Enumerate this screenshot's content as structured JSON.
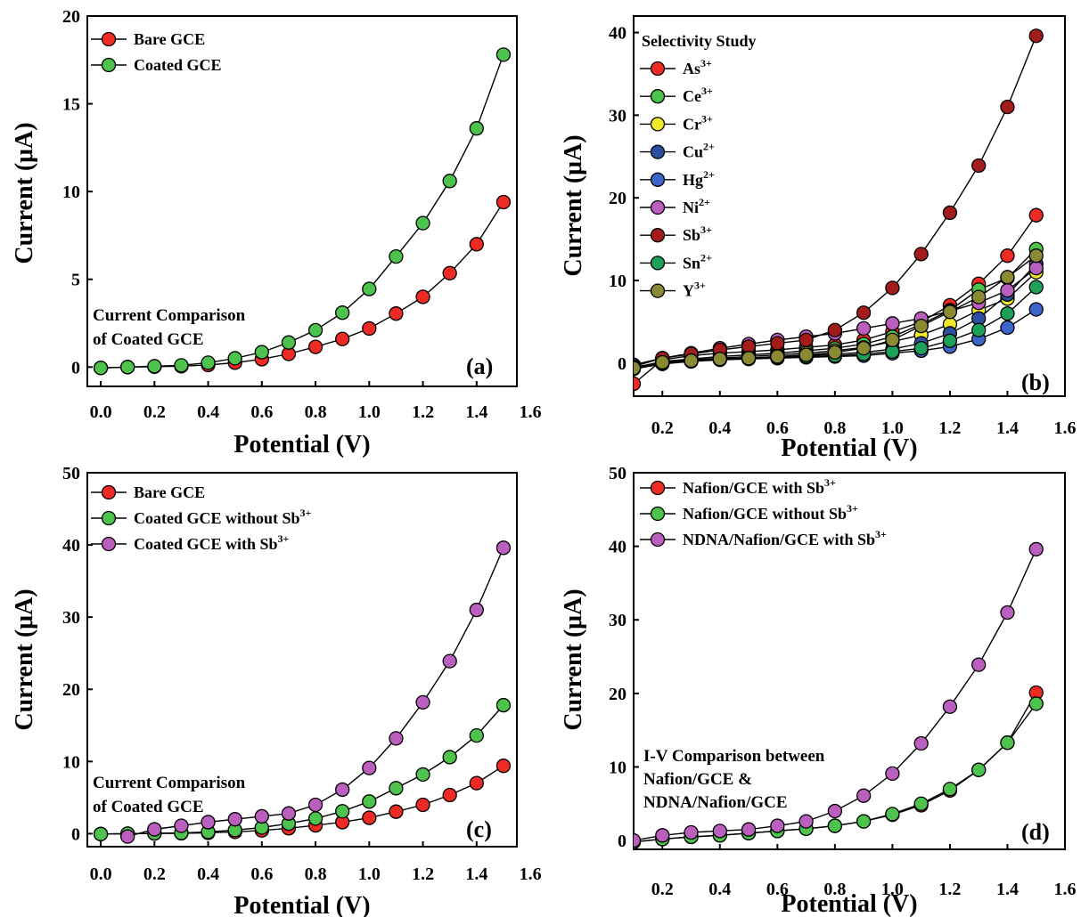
{
  "chart_data": [
    {
      "type": "line",
      "panel": "(a)",
      "xlabel": "Potential (V)",
      "ylabel": "Current (μA)",
      "xlim": [
        -0.05,
        1.55
      ],
      "ylim": [
        -1.1,
        20
      ],
      "xticks": [
        "0.0",
        "0.2",
        "0.4",
        "0.6",
        "0.8",
        "1.0",
        "1.2",
        "1.4",
        "1.6"
      ],
      "yticks": [
        "0",
        "5",
        "10",
        "15",
        "20"
      ],
      "legend_position": "top-left",
      "annotation": [
        "Current Comparison",
        "of Coated GCE"
      ],
      "x": [
        0.0,
        0.1,
        0.2,
        0.3,
        0.4,
        0.5,
        0.6,
        0.7,
        0.8,
        0.9,
        1.0,
        1.1,
        1.2,
        1.3,
        1.4,
        1.5
      ],
      "series": [
        {
          "name": "Bare GCE",
          "color": "#ee2a24",
          "values": [
            -0.05,
            0.0,
            0.02,
            0.05,
            0.12,
            0.25,
            0.45,
            0.75,
            1.15,
            1.6,
            2.2,
            3.05,
            4.0,
            5.35,
            7.0,
            9.4
          ]
        },
        {
          "name": "Coated GCE",
          "color": "#4dc24d",
          "values": [
            -0.05,
            0.0,
            0.05,
            0.1,
            0.25,
            0.5,
            0.85,
            1.4,
            2.1,
            3.1,
            4.45,
            6.3,
            8.2,
            10.6,
            13.6,
            17.8
          ]
        }
      ]
    },
    {
      "type": "line",
      "panel": "(b)",
      "title": "Selectivity Study",
      "xlabel": "Potential (V)",
      "ylabel": "Current (μA)",
      "xlim": [
        0.1,
        1.6
      ],
      "ylim": [
        -4,
        42
      ],
      "xticks": [
        "0.2",
        "0.4",
        "0.6",
        "0.8",
        "1.0",
        "1.2",
        "1.4",
        "1.6"
      ],
      "yticks": [
        "0",
        "10",
        "20",
        "30",
        "40"
      ],
      "legend_position": "top-left",
      "x": [
        0.1,
        0.2,
        0.3,
        0.4,
        0.5,
        0.6,
        0.7,
        0.8,
        0.9,
        1.0,
        1.1,
        1.2,
        1.3,
        1.4,
        1.5
      ],
      "series": [
        {
          "name": "As",
          "sup": "3+",
          "color": "#ee2a24",
          "values": [
            -2.5,
            0.4,
            0.9,
            1.2,
            1.4,
            1.6,
            1.9,
            2.2,
            2.8,
            3.8,
            5.0,
            7.0,
            9.6,
            13.0,
            17.9
          ]
        },
        {
          "name": "Ce",
          "sup": "3+",
          "color": "#4dc24d",
          "values": [
            -0.6,
            0.2,
            0.5,
            0.8,
            1.0,
            1.2,
            1.5,
            1.8,
            2.3,
            3.2,
            4.7,
            6.4,
            8.9,
            10.3,
            13.8
          ]
        },
        {
          "name": "Cr",
          "sup": "3+",
          "color": "#f2e82b",
          "values": [
            -0.5,
            0.1,
            0.4,
            0.6,
            0.8,
            1.0,
            1.2,
            1.5,
            1.9,
            2.6,
            3.4,
            4.7,
            6.4,
            7.8,
            11.0
          ]
        },
        {
          "name": "Cu",
          "sup": "2+",
          "color": "#2c4fa0",
          "values": [
            -0.6,
            0.0,
            0.3,
            0.5,
            0.6,
            0.8,
            0.9,
            1.1,
            1.3,
            1.7,
            2.4,
            3.6,
            5.4,
            8.3,
            12.0
          ]
        },
        {
          "name": "Hg",
          "sup": "2+",
          "color": "#3b66c8",
          "values": [
            -0.7,
            -0.1,
            0.2,
            0.4,
            0.5,
            0.6,
            0.7,
            0.8,
            0.9,
            1.2,
            1.5,
            2.0,
            2.9,
            4.3,
            6.5
          ]
        },
        {
          "name": "Ni",
          "sup": "2+",
          "color": "#bb5fbe",
          "values": [
            -0.2,
            0.6,
            1.2,
            1.8,
            2.3,
            2.8,
            3.2,
            3.6,
            4.2,
            4.8,
            5.4,
            6.3,
            7.3,
            8.8,
            11.5
          ]
        },
        {
          "name": "Sb",
          "sup": "3+",
          "color": "#a21c1c",
          "values": [
            -0.4,
            0.6,
            1.1,
            1.6,
            2.0,
            2.4,
            2.8,
            4.0,
            6.1,
            9.1,
            13.2,
            18.2,
            23.9,
            31.0,
            39.6
          ]
        },
        {
          "name": "Sn",
          "sup": "2+",
          "color": "#1e9f5a",
          "values": [
            -0.5,
            0.0,
            0.3,
            0.5,
            0.6,
            0.7,
            0.8,
            0.9,
            1.1,
            1.4,
            1.8,
            2.7,
            4.0,
            6.0,
            9.2
          ]
        },
        {
          "name": "Y",
          "sup": "3+",
          "color": "#8b8a34",
          "values": [
            -0.6,
            0.1,
            0.3,
            0.5,
            0.6,
            0.8,
            1.0,
            1.3,
            1.8,
            2.8,
            4.5,
            6.2,
            8.0,
            10.4,
            13.0
          ]
        }
      ]
    },
    {
      "type": "line",
      "panel": "(c)",
      "xlabel": "Potential (V)",
      "ylabel": "Current (μA)",
      "xlim": [
        -0.05,
        1.55
      ],
      "ylim": [
        -1.8,
        50
      ],
      "xticks": [
        "0.0",
        "0.2",
        "0.4",
        "0.6",
        "0.8",
        "1.0",
        "1.2",
        "1.4",
        "1.6"
      ],
      "yticks": [
        "0",
        "10",
        "20",
        "30",
        "40",
        "50"
      ],
      "legend_position": "top-left",
      "annotation": [
        "Current Comparison",
        "of Coated GCE"
      ],
      "x": [
        0.0,
        0.1,
        0.2,
        0.3,
        0.4,
        0.5,
        0.6,
        0.7,
        0.8,
        0.9,
        1.0,
        1.1,
        1.2,
        1.3,
        1.4,
        1.5
      ],
      "series": [
        {
          "name": "Bare GCE",
          "color": "#ee2a24",
          "values": [
            -0.05,
            0.0,
            0.02,
            0.05,
            0.12,
            0.25,
            0.45,
            0.75,
            1.15,
            1.6,
            2.2,
            3.05,
            4.0,
            5.35,
            7.0,
            9.4
          ]
        },
        {
          "name": "Coated GCE without Sb",
          "sup": "3+",
          "color": "#4dc24d",
          "values": [
            -0.05,
            0.0,
            0.05,
            0.1,
            0.25,
            0.5,
            0.85,
            1.4,
            2.1,
            3.1,
            4.45,
            6.3,
            8.2,
            10.6,
            13.6,
            17.8
          ]
        },
        {
          "name": "Coated GCE with Sb",
          "sup": "3+",
          "color": "#bb5fbe",
          "values": [
            null,
            -0.4,
            0.6,
            1.1,
            1.6,
            2.0,
            2.4,
            2.8,
            4.0,
            6.1,
            9.1,
            13.2,
            18.2,
            23.9,
            31.0,
            39.6
          ]
        }
      ]
    },
    {
      "type": "line",
      "panel": "(d)",
      "xlabel": "Potential (V)",
      "ylabel": "Current (μA)",
      "xlim": [
        0.1,
        1.6
      ],
      "ylim": [
        -1.2,
        50
      ],
      "xticks": [
        "0.2",
        "0.4",
        "0.6",
        "0.8",
        "1.0",
        "1.2",
        "1.4",
        "1.6"
      ],
      "yticks": [
        "0",
        "10",
        "20",
        "30",
        "40",
        "50"
      ],
      "legend_position": "top-left",
      "annotation": [
        "I-V Comparison between",
        "Nafion/GCE &",
        "NDNA/Nafion/GCE"
      ],
      "x": [
        0.1,
        0.2,
        0.3,
        0.4,
        0.5,
        0.6,
        0.7,
        0.8,
        0.9,
        1.0,
        1.1,
        1.2,
        1.3,
        1.4,
        1.5
      ],
      "series": [
        {
          "name": "Nafion/GCE with Sb",
          "sup": "3+",
          "color": "#ee2a24",
          "values": [
            -0.2,
            0.2,
            0.5,
            0.7,
            1.0,
            1.3,
            1.6,
            2.0,
            2.6,
            3.5,
            4.8,
            6.8,
            9.6,
            13.3,
            20.1
          ]
        },
        {
          "name": "Nafion/GCE without Sb",
          "sup": "3+",
          "color": "#4dc24d",
          "values": [
            -0.2,
            0.2,
            0.5,
            0.7,
            1.0,
            1.3,
            1.6,
            2.0,
            2.6,
            3.6,
            5.0,
            7.0,
            9.6,
            13.3,
            18.6
          ]
        },
        {
          "name": "NDNA/Nafion/GCE with Sb",
          "sup": "3+",
          "color": "#bb5fbe",
          "values": [
            0.0,
            0.7,
            1.1,
            1.3,
            1.5,
            2.0,
            2.6,
            4.0,
            6.1,
            9.1,
            13.2,
            18.2,
            23.9,
            31.0,
            39.6
          ]
        }
      ]
    }
  ]
}
